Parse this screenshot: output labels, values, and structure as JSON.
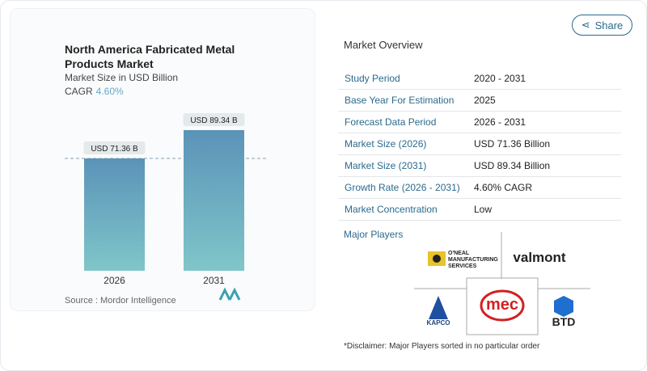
{
  "header": {
    "share_label": "Share",
    "share_icon": "share-icon"
  },
  "chart_data": {
    "type": "bar",
    "title": "North America Fabricated Metal Products Market",
    "subtitle": "Market Size in USD Billion",
    "cagr_label": "CAGR",
    "cagr_value": "4.60%",
    "categories": [
      "2026",
      "2031"
    ],
    "values": [
      71.36,
      89.34
    ],
    "data_labels": [
      "USD 71.36 B",
      "USD 89.34 B"
    ],
    "bar_color_top": "#5b93b8",
    "bar_color_bottom": "#7fc6c9",
    "reference_line": "dashed at 2026 value",
    "source": "Source :  Mordor Intelligence"
  },
  "overview": {
    "title": "Market Overview",
    "rows": [
      {
        "k": "Study Period",
        "v": "2020 - 2031"
      },
      {
        "k": "Base Year For Estimation",
        "v": "2025"
      },
      {
        "k": "Forecast Data Period",
        "v": "2026 - 2031"
      },
      {
        "k": "Market Size (2026)",
        "v": "USD 71.36 Billion"
      },
      {
        "k": "Market Size (2031)",
        "v": "USD 89.34 Billion"
      },
      {
        "k": "Growth Rate (2026 - 2031)",
        "v": "4.60% CAGR"
      },
      {
        "k": "Market Concentration",
        "v": "Low"
      }
    ],
    "players_title": "Major Players",
    "players": [
      "O'NEAL MANUFACTURING SERVICES",
      "valmont",
      "KAPCO",
      "mec",
      "BTD"
    ],
    "disclaimer": "*Disclaimer: Major Players sorted in no particular order"
  }
}
